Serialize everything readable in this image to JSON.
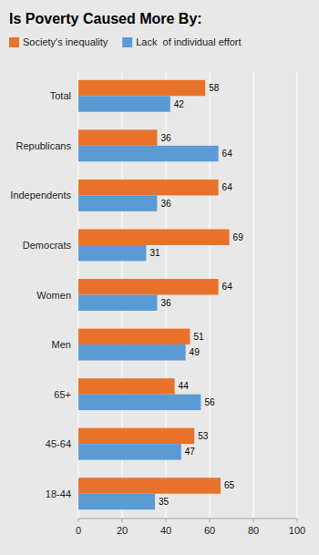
{
  "chart_data": {
    "type": "bar",
    "orientation": "horizontal",
    "title": "Is Poverty Caused More By:",
    "categories": [
      "Total",
      "Republicans",
      "Independents",
      "Democrats",
      "Women",
      "Men",
      "65+",
      "45-64",
      "18-44"
    ],
    "series": [
      {
        "name": "Society's inequality",
        "color": "#E8722A",
        "values": [
          58,
          36,
          64,
          69,
          64,
          51,
          44,
          53,
          65
        ]
      },
      {
        "name": "Lack  of individual effort",
        "color": "#5B9BD5",
        "values": [
          42,
          64,
          36,
          31,
          36,
          49,
          56,
          47,
          35
        ]
      }
    ],
    "xlim": [
      0,
      100
    ],
    "xticks": [
      0,
      20,
      40,
      60,
      80,
      100
    ],
    "grid": true,
    "legend": "top",
    "data_labels": true
  }
}
